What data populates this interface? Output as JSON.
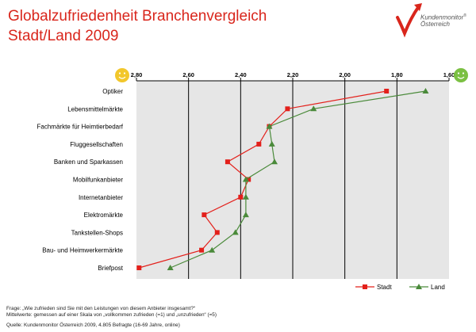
{
  "title_line1": "Globalzufriedenheit Branchenvergleich",
  "title_line2": "Stadt/Land 2009",
  "logo": {
    "line1": "Kundenmonitor",
    "line1_mark": "®",
    "line2": "Österreich",
    "colors": {
      "red": "#d9261c",
      "gray": "#8a8a8a"
    }
  },
  "icons": {
    "left": "smiley-face-icon",
    "right": "smiley-face-icon",
    "left_color": "#f2c72c",
    "right_color": "#7bc043"
  },
  "chart_data": {
    "type": "line",
    "orientation": "horizontal",
    "xlim": [
      2.8,
      1.6
    ],
    "x_ticks": [
      "2,80",
      "2,60",
      "2,40",
      "2,20",
      "2,00",
      "1,80",
      "1,60"
    ],
    "x_tick_values": [
      2.8,
      2.6,
      2.4,
      2.2,
      2.0,
      1.8,
      1.6
    ],
    "grid": "vertical",
    "plot_bg": "#e6e6e6",
    "legend_position": "bottom-right",
    "categories": [
      "Optiker",
      "Lebensmittelmärkte",
      "Fachmärkte für Heimtierbedarf",
      "Fluggesellschaften",
      "Banken und Sparkassen",
      "Mobilfunkanbieter",
      "Internetanbieter",
      "Elektromärkte",
      "Tankstellen-Shops",
      "Bau- und Heimwerkermärkte",
      "Briefpost"
    ],
    "series": [
      {
        "name": "Stadt",
        "color": "#e3201b",
        "marker": "square",
        "values": [
          1.84,
          2.22,
          2.29,
          2.33,
          2.45,
          2.37,
          2.4,
          2.54,
          2.49,
          2.55,
          2.79
        ]
      },
      {
        "name": "Land",
        "color": "#4a8a3a",
        "marker": "triangle",
        "values": [
          1.69,
          2.12,
          2.29,
          2.28,
          2.27,
          2.38,
          2.38,
          2.38,
          2.42,
          2.51,
          2.67
        ]
      }
    ]
  },
  "footnote": {
    "line1": "Frage: „Wie zufrieden sind Sie mit den Leistungen von diesem Anbieter insgesamt?“",
    "line2": "Mittelwerte: gemessen auf einer Skala von „vollkommen zufrieden (=1) und „unzufrieden“ (=5)",
    "line3": "Quelle: Kundenmonitor Österreich 2009, 4.805 Befragte (16-69 Jahre, online)"
  }
}
